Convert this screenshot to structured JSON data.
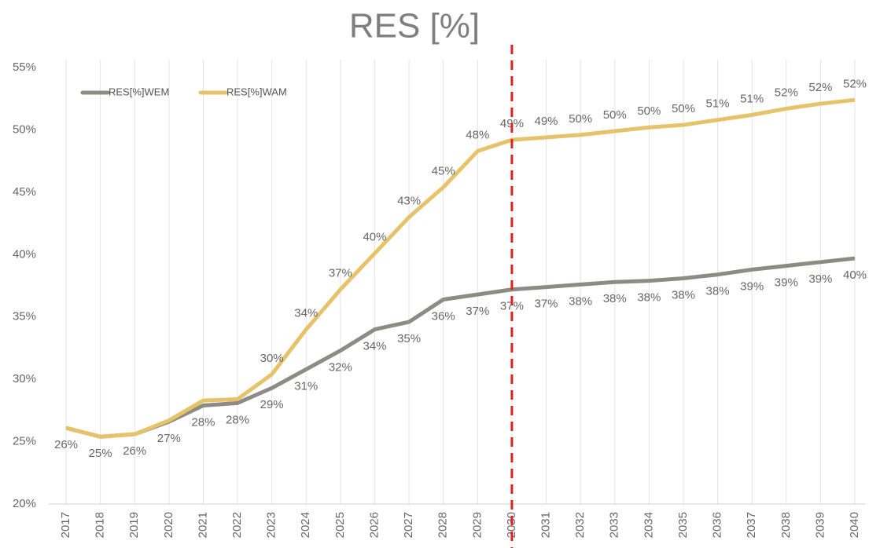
{
  "chart_data": {
    "type": "line",
    "title": "RES [%]",
    "categories": [
      "2017",
      "2018",
      "2019",
      "2020",
      "2021",
      "2022",
      "2023",
      "2024",
      "2025",
      "2026",
      "2027",
      "2028",
      "2029",
      "2030",
      "2031",
      "2032",
      "2033",
      "2034",
      "2035",
      "2036",
      "2037",
      "2038",
      "2039",
      "2040"
    ],
    "series": [
      {
        "name": "RES[%]WEM",
        "color": "#8c8c84",
        "values": [
          26.1,
          25.4,
          25.6,
          26.6,
          27.9,
          28.1,
          29.3,
          30.8,
          32.3,
          34.0,
          34.6,
          36.4,
          36.8,
          37.2,
          37.4,
          37.6,
          37.8,
          37.9,
          38.1,
          38.4,
          38.8,
          39.1,
          39.4,
          39.7
        ],
        "value_labels": [
          "26%",
          "25%",
          "26%",
          "27%",
          "28%",
          "28%",
          "29%",
          "31%",
          "32%",
          "34%",
          "35%",
          "36%",
          "37%",
          "37%",
          "37%",
          "38%",
          "38%",
          "38%",
          "38%",
          "38%",
          "39%",
          "39%",
          "39%",
          "40%"
        ]
      },
      {
        "name": "RES[%]WAM",
        "color": "#e6c36a",
        "values": [
          26.1,
          25.4,
          25.6,
          26.7,
          28.3,
          28.4,
          30.4,
          34.0,
          37.2,
          40.1,
          43.0,
          45.4,
          48.3,
          49.2,
          49.4,
          49.6,
          49.9,
          50.2,
          50.4,
          50.8,
          51.2,
          51.7,
          52.1,
          52.4
        ],
        "value_labels": [
          null,
          null,
          null,
          null,
          null,
          null,
          "30%",
          "34%",
          "37%",
          "40%",
          "43%",
          "45%",
          "48%",
          "49%",
          "49%",
          "50%",
          "50%",
          "50%",
          "50%",
          "51%",
          "51%",
          "52%",
          "52%",
          "52%"
        ]
      }
    ],
    "ylim": [
      20,
      55
    ],
    "yticks": [
      {
        "value": 20,
        "label": "20%"
      },
      {
        "value": 25,
        "label": "25%"
      },
      {
        "value": 30,
        "label": "30%"
      },
      {
        "value": 35,
        "label": "35%"
      },
      {
        "value": 40,
        "label": "40%"
      },
      {
        "value": 45,
        "label": "45%"
      },
      {
        "value": 50,
        "label": "50%"
      },
      {
        "value": 55,
        "label": "55%"
      }
    ],
    "grid": true,
    "legend": "top-left",
    "reference_line": {
      "category": "2030",
      "color": "#e02020"
    }
  }
}
